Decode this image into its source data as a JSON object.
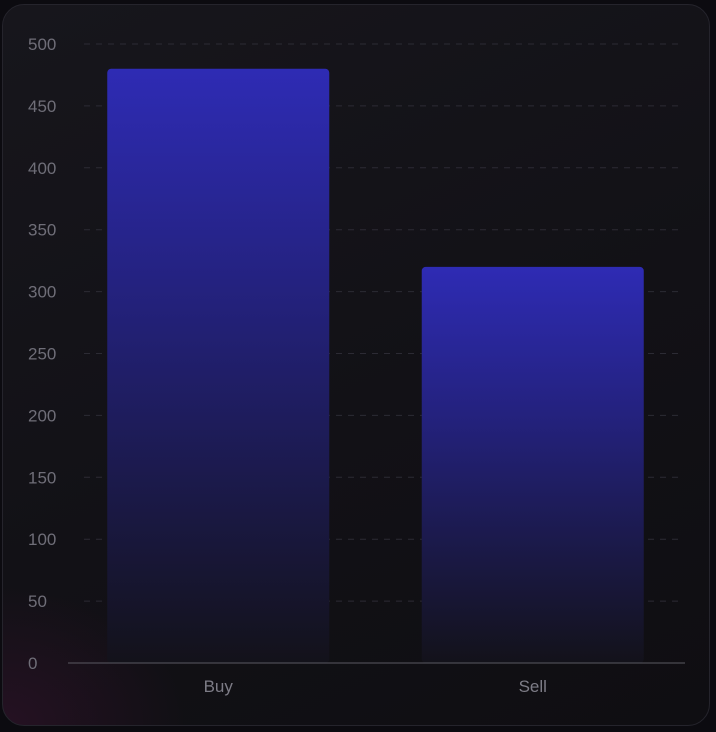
{
  "chart_data": {
    "type": "bar",
    "categories": [
      "Buy",
      "Sell"
    ],
    "values": [
      480,
      320
    ],
    "ylim": [
      0,
      500
    ],
    "yticks": [
      0,
      50,
      100,
      150,
      200,
      250,
      300,
      350,
      400,
      450,
      500
    ],
    "grid": true,
    "colors": {
      "bar_top": "#2e2bb4",
      "bar_bottom": "#13121a",
      "grid": "#2c2b34",
      "axis": "#5a5962"
    }
  }
}
